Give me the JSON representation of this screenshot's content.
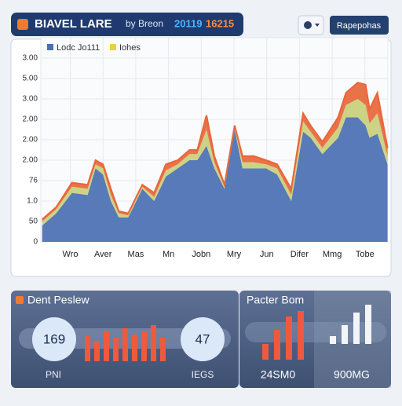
{
  "header": {
    "title": "BIAVEL LARE",
    "byline": "by Breon",
    "code_a": "20119",
    "code_b": "16215",
    "button": "Rapepohas"
  },
  "chart_data": {
    "type": "area",
    "x": [
      -0.86,
      -0.43,
      0.05,
      0.53,
      0.77,
      1.0,
      1.24,
      1.48,
      1.77,
      2.2,
      2.56,
      2.92,
      3.28,
      3.64,
      3.88,
      4.16,
      4.4,
      4.71,
      5.02,
      5.26,
      5.6,
      5.98,
      6.32,
      6.75,
      7.11,
      7.34,
      7.7,
      8.18,
      8.42,
      8.78,
      9.02,
      9.14,
      9.38,
      9.69
    ],
    "series": [
      {
        "name": "Lodc Jo111",
        "color": "#4a6fb2",
        "values": [
          0.8,
          1.4,
          2.4,
          2.3,
          3.6,
          3.3,
          2.0,
          1.2,
          1.2,
          2.6,
          2.0,
          3.2,
          3.6,
          4.0,
          4.0,
          4.7,
          3.6,
          2.6,
          5.5,
          3.6,
          3.6,
          3.6,
          3.3,
          2.0,
          5.4,
          5.1,
          4.3,
          5.1,
          6.1,
          6.1,
          5.7,
          5.1,
          5.3,
          3.8
        ]
      },
      {
        "name": "Iohes",
        "color": "#c9cf7a",
        "values": [
          0.2,
          0.2,
          0.3,
          0.3,
          0.2,
          0.3,
          0.3,
          0.2,
          0.1,
          0.1,
          0.2,
          0.3,
          0.2,
          0.3,
          0.3,
          0.8,
          0.3,
          0.1,
          0.1,
          0.3,
          0.3,
          0.2,
          0.3,
          0.3,
          0.5,
          0.3,
          0.3,
          0.5,
          0.6,
          0.9,
          1.0,
          0.7,
          1.0,
          0.4
        ]
      },
      {
        "color": "#e8663a",
        "values": [
          0.1,
          0.1,
          0.2,
          0.2,
          0.2,
          0.2,
          0.3,
          0.1,
          0.1,
          0.1,
          0.2,
          0.3,
          0.2,
          0.2,
          0.2,
          0.7,
          0.3,
          0.1,
          0.1,
          0.3,
          0.3,
          0.2,
          0.2,
          0.3,
          0.4,
          0.3,
          0.3,
          0.5,
          0.6,
          0.8,
          1.0,
          0.7,
          1.0,
          0.4
        ]
      }
    ],
    "xlim": [
      -0.9,
      9.7
    ],
    "xticks": [
      {
        "value": 0,
        "label": "Wro"
      },
      {
        "value": 1,
        "label": "Aver"
      },
      {
        "value": 2,
        "label": "Mas"
      },
      {
        "value": 3,
        "label": "Mn"
      },
      {
        "value": 4,
        "label": "Jobn"
      },
      {
        "value": 5,
        "label": "Mry"
      },
      {
        "value": 6,
        "label": "Jun"
      },
      {
        "value": 7,
        "label": "Difer"
      },
      {
        "value": 8,
        "label": "Mmg"
      },
      {
        "value": 9,
        "label": "Tobe"
      }
    ],
    "ylim": [
      0,
      10
    ],
    "yticks": [
      0,
      {
        "value": 1,
        "label": "50"
      },
      {
        "value": 2,
        "label": "1.0"
      },
      {
        "value": 3,
        "label": "76"
      },
      {
        "value": 4,
        "label": "2.00"
      },
      {
        "value": 5,
        "label": "2.00"
      },
      {
        "value": 6,
        "label": "2.00"
      },
      {
        "value": 7,
        "label": "3.00"
      },
      {
        "value": 8,
        "label": "5.00"
      },
      {
        "value": 9,
        "label": "3.00"
      }
    ],
    "grid": true,
    "stacked": true,
    "legend": "top-left"
  },
  "widgets": {
    "left": {
      "title": "Dent Peslew",
      "left_value": "169",
      "right_value": "47",
      "left_label": "PNI",
      "right_label": "IEGS",
      "color": "#ef5a3c",
      "bars": [
        32,
        26,
        38,
        30,
        42,
        34,
        38,
        46,
        30
      ]
    },
    "right": {
      "title": "Pacter Bom",
      "orange_label": "24SM0",
      "white_label": "900MG",
      "orange_color": "#ef5a3c",
      "white_color": "#f2f4f8",
      "orange_bars": [
        20,
        38,
        55,
        62
      ],
      "white_bars": [
        10,
        24,
        40,
        50
      ]
    }
  }
}
